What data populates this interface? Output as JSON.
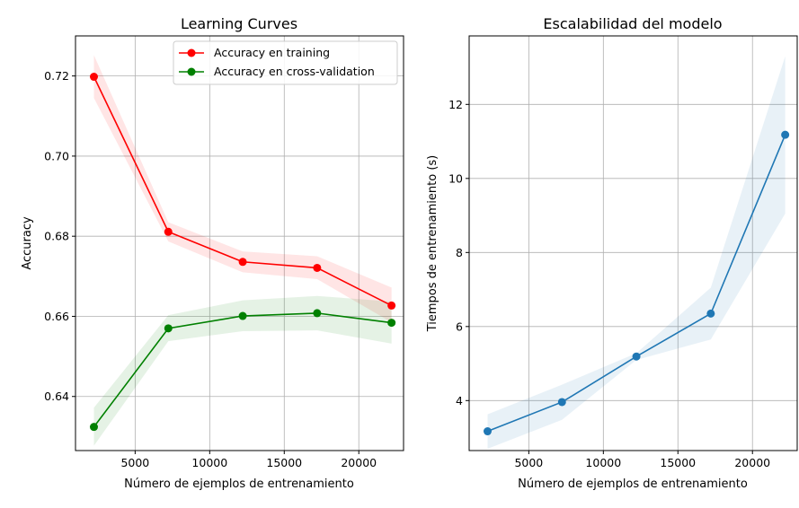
{
  "colors": {
    "training": "#ff0000",
    "cv": "#008000",
    "time": "#1f77b4",
    "grid": "#b0b0b0"
  },
  "chart_data": [
    {
      "type": "line",
      "title": "Learning Curves",
      "xlabel": "Número de ejemplos de entrenamiento",
      "ylabel": "Accuracy",
      "xlim": [
        1000,
        23000
      ],
      "ylim": [
        0.6265,
        0.73
      ],
      "xticks": [
        5000,
        10000,
        15000,
        20000
      ],
      "yticks": [
        0.64,
        0.66,
        0.68,
        0.7,
        0.72
      ],
      "ytick_labels": [
        "0.64",
        "0.66",
        "0.68",
        "0.70",
        "0.72"
      ],
      "grid": true,
      "legend_position": "top-right",
      "x": [
        2235,
        7225,
        12215,
        17205,
        22195
      ],
      "series": [
        {
          "name": "Accuracy en training",
          "color": "#ff0000",
          "values": [
            0.7198,
            0.6811,
            0.6736,
            0.6721,
            0.6627
          ],
          "lower": [
            0.7145,
            0.6787,
            0.671,
            0.6693,
            0.6585
          ],
          "upper": [
            0.7252,
            0.6835,
            0.6762,
            0.675,
            0.6672
          ]
        },
        {
          "name": "Accuracy en cross-validation",
          "color": "#008000",
          "values": [
            0.6324,
            0.657,
            0.6601,
            0.6608,
            0.6584
          ],
          "lower": [
            0.6277,
            0.6538,
            0.6563,
            0.6565,
            0.6532
          ],
          "upper": [
            0.6372,
            0.6603,
            0.664,
            0.6651,
            0.6637
          ]
        }
      ]
    },
    {
      "type": "line",
      "title": "Escalabilidad del modelo",
      "xlabel": "Número de ejemplos de entrenamiento",
      "ylabel": "Tiempos de entrenamiento (s)",
      "xlim": [
        1000,
        23000
      ],
      "ylim": [
        2.65,
        13.85
      ],
      "xticks": [
        5000,
        10000,
        15000,
        20000
      ],
      "yticks": [
        4,
        6,
        8,
        10,
        12
      ],
      "ytick_labels": [
        "4",
        "6",
        "8",
        "10",
        "12"
      ],
      "grid": true,
      "x": [
        2235,
        7225,
        12215,
        17205,
        22195
      ],
      "series": [
        {
          "color": "#1f77b4",
          "values": [
            3.17,
            3.96,
            5.19,
            6.35,
            11.18
          ],
          "lower": [
            2.7,
            3.48,
            5.1,
            5.65,
            9.05
          ],
          "upper": [
            3.63,
            4.43,
            5.28,
            7.05,
            13.3
          ]
        }
      ]
    }
  ]
}
